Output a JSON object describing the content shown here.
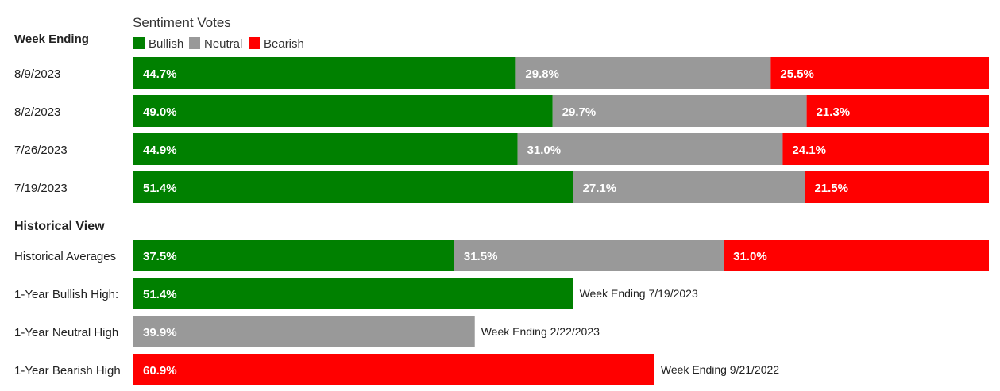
{
  "chart_data": {
    "type": "bar",
    "orientation": "horizontal",
    "stacked": true,
    "legend_title": "Sentiment Votes",
    "legend_placement": "top-left",
    "section_week": "Week Ending",
    "section_history": "Historical View",
    "xlim": [
      0,
      100
    ],
    "colors": {
      "bullish": "#008000",
      "neutral": "#999999",
      "bearish": "#ff0000"
    },
    "series": [
      {
        "name": "Bullish",
        "key": "bullish"
      },
      {
        "name": "Neutral",
        "key": "neutral"
      },
      {
        "name": "Bearish",
        "key": "bearish"
      }
    ],
    "weeks": [
      {
        "label": "8/9/2023",
        "values": [
          44.7,
          29.8,
          25.5
        ],
        "text": [
          "44.7%",
          "29.8%",
          "25.5%"
        ]
      },
      {
        "label": "8/2/2023",
        "values": [
          49.0,
          29.7,
          21.3
        ],
        "text": [
          "49.0%",
          "29.7%",
          "21.3%"
        ]
      },
      {
        "label": "7/26/2023",
        "values": [
          44.9,
          31.0,
          24.1
        ],
        "text": [
          "44.9%",
          "31.0%",
          "24.1%"
        ]
      },
      {
        "label": "7/19/2023",
        "values": [
          51.4,
          27.1,
          21.5
        ],
        "text": [
          "51.4%",
          "27.1%",
          "21.5%"
        ]
      }
    ],
    "historical_average": {
      "label": "Historical Averages",
      "values": [
        37.5,
        31.5,
        31.0
      ],
      "text": [
        "37.5%",
        "31.5%",
        "31.0%"
      ]
    },
    "highs": [
      {
        "label": "1-Year Bullish High:",
        "series": "bullish",
        "value": 51.4,
        "text": "51.4%",
        "note": "Week Ending 7/19/2023"
      },
      {
        "label": "1-Year Neutral High",
        "series": "neutral",
        "value": 39.9,
        "text": "39.9%",
        "note": "Week Ending 2/22/2023"
      },
      {
        "label": "1-Year Bearish High",
        "series": "bearish",
        "value": 60.9,
        "text": "60.9%",
        "note": "Week Ending 9/21/2022"
      }
    ]
  }
}
